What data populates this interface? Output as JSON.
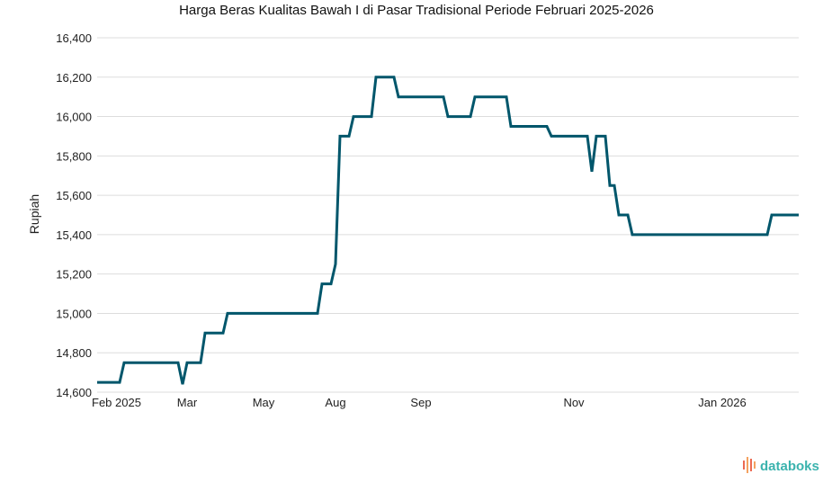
{
  "chart_data": {
    "type": "line",
    "title": "Harga Beras Kualitas Bawah I di Pasar Tradisional Periode Februari 2025-2026",
    "ylabel": "Rupiah",
    "xlabel": "",
    "ylim": [
      14600,
      16400
    ],
    "yticks": [
      14600,
      14800,
      15000,
      15200,
      15400,
      15600,
      15800,
      16000,
      16200,
      16400
    ],
    "ytick_labels": [
      "14,600",
      "14,800",
      "15,000",
      "15,200",
      "15,400",
      "15,600",
      "15,800",
      "16,000",
      "16,200",
      "16,400"
    ],
    "xtick_labels": [
      "Feb 2025",
      "Mar",
      "May",
      "Aug",
      "Sep",
      "Nov",
      "Jan 2026"
    ],
    "x": [
      0,
      4,
      5,
      8,
      9,
      10,
      13,
      14,
      16,
      24,
      25,
      28,
      29,
      32,
      33,
      40,
      41,
      46,
      47,
      48,
      61,
      62,
      63,
      64,
      65,
      66,
      67,
      68,
      71,
      72,
      73,
      74,
      75,
      76,
      77,
      79,
      80,
      81,
      82,
      83,
      84,
      85,
      86,
      87,
      88,
      89,
      90,
      91,
      92,
      93,
      94,
      95,
      96,
      97,
      98,
      99,
      100,
      101,
      102,
      103,
      104,
      105,
      106,
      107,
      108,
      109,
      110,
      111,
      112,
      113,
      114,
      115,
      116,
      117,
      118,
      119,
      120,
      121,
      122,
      123,
      124,
      125,
      126,
      127,
      128,
      129,
      130,
      131,
      132,
      133,
      134,
      135,
      136,
      137,
      138,
      139,
      140,
      141,
      142,
      143,
      144,
      145,
      146,
      147,
      148,
      149,
      150,
      151,
      152,
      153,
      154,
      155,
      156,
      157
    ],
    "series": [
      {
        "color": "#00566b",
        "points": [
          [
            0,
            14650
          ],
          [
            5,
            14650
          ],
          [
            6,
            14750
          ],
          [
            18,
            14750
          ],
          [
            19,
            14640
          ],
          [
            20,
            14750
          ],
          [
            23,
            14750
          ],
          [
            24,
            14900
          ],
          [
            28,
            14900
          ],
          [
            29,
            15000
          ],
          [
            49,
            15000
          ],
          [
            50,
            15150
          ],
          [
            52,
            15150
          ],
          [
            53,
            15250
          ],
          [
            54,
            15900
          ],
          [
            56,
            15900
          ],
          [
            57,
            16000
          ],
          [
            61,
            16000
          ],
          [
            62,
            16200
          ],
          [
            66,
            16200
          ],
          [
            67,
            16100
          ],
          [
            77,
            16100
          ],
          [
            78,
            16000
          ],
          [
            83,
            16000
          ],
          [
            84,
            16100
          ],
          [
            91,
            16100
          ],
          [
            92,
            15950
          ],
          [
            100,
            15950
          ],
          [
            101,
            15900
          ],
          [
            109,
            15900
          ],
          [
            110,
            15720
          ],
          [
            111,
            15900
          ],
          [
            113,
            15900
          ],
          [
            114,
            15650
          ],
          [
            115,
            15650
          ],
          [
            116,
            15500
          ],
          [
            118,
            15500
          ],
          [
            119,
            15400
          ],
          [
            149,
            15400
          ],
          [
            150,
            15500
          ],
          [
            156,
            15500
          ]
        ]
      }
    ]
  },
  "logo": {
    "text": "databoks",
    "colors": [
      "#ec6a52",
      "#f4a261",
      "#3bb3ae"
    ]
  }
}
